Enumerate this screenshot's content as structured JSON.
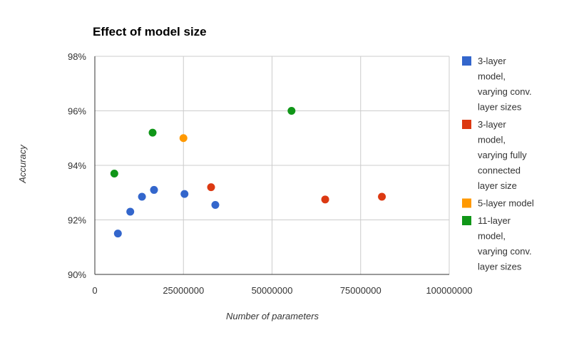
{
  "chart_data": {
    "type": "scatter",
    "title": "Effect of model size",
    "xlabel": "Number of parameters",
    "ylabel": "Accuracy",
    "xlim": [
      0,
      100000000
    ],
    "ylim": [
      90,
      98
    ],
    "x_ticks": [
      0,
      25000000,
      50000000,
      75000000,
      100000000
    ],
    "x_tick_labels": [
      "0",
      "25000000",
      "50000000",
      "75000000",
      "100000000"
    ],
    "y_ticks": [
      90,
      92,
      94,
      96,
      98
    ],
    "y_tick_labels": [
      "90%",
      "92%",
      "94%",
      "96%",
      "98%"
    ],
    "grid": true,
    "legend_position": "right",
    "series": [
      {
        "name": "3-layer model, varying conv. layer sizes",
        "legend_lines": [
          "3-layer",
          "model,",
          "varying conv.",
          "layer sizes"
        ],
        "color": "#3366cc",
        "points": [
          {
            "x": 6500000,
            "y": 91.5
          },
          {
            "x": 10000000,
            "y": 92.3
          },
          {
            "x": 13300000,
            "y": 92.85
          },
          {
            "x": 16700000,
            "y": 93.1
          },
          {
            "x": 25300000,
            "y": 92.95
          },
          {
            "x": 34000000,
            "y": 92.55
          }
        ]
      },
      {
        "name": "3-layer model, varying fully connected layer size",
        "legend_lines": [
          "3-layer",
          "model,",
          "varying fully",
          "connected",
          "layer size"
        ],
        "color": "#dc3912",
        "points": [
          {
            "x": 32800000,
            "y": 93.2
          },
          {
            "x": 65000000,
            "y": 92.75
          },
          {
            "x": 81000000,
            "y": 92.85
          }
        ]
      },
      {
        "name": "5-layer model",
        "legend_lines": [
          "5-layer model"
        ],
        "color": "#ff9900",
        "points": [
          {
            "x": 25000000,
            "y": 95.0
          }
        ]
      },
      {
        "name": "11-layer model, varying conv. layer sizes",
        "legend_lines": [
          "11-layer",
          "model,",
          "varying conv.",
          "layer sizes"
        ],
        "color": "#109618",
        "points": [
          {
            "x": 5500000,
            "y": 93.7
          },
          {
            "x": 16300000,
            "y": 95.2
          },
          {
            "x": 55500000,
            "y": 96.0
          }
        ]
      }
    ]
  }
}
